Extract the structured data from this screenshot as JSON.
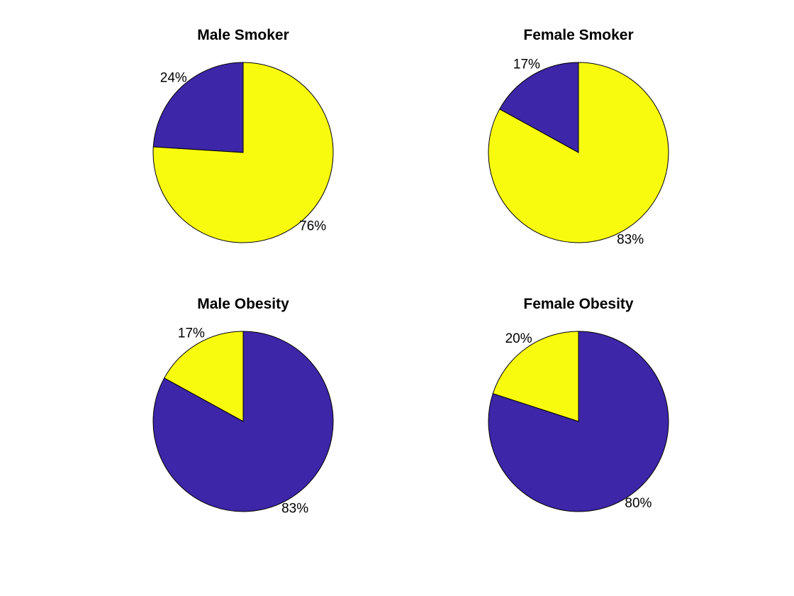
{
  "chart_data": [
    {
      "type": "pie",
      "title": "Male Smoker",
      "slices": [
        {
          "value": 24,
          "label": "24%",
          "color": "#3d26a8"
        },
        {
          "value": 76,
          "label": "76%",
          "color": "#f9fb0e"
        }
      ]
    },
    {
      "type": "pie",
      "title": "Female Smoker",
      "slices": [
        {
          "value": 17,
          "label": "17%",
          "color": "#3d26a8"
        },
        {
          "value": 83,
          "label": "83%",
          "color": "#f9fb0e"
        }
      ]
    },
    {
      "type": "pie",
      "title": "Male Obesity",
      "slices": [
        {
          "value": 17,
          "label": "17%",
          "color": "#f9fb0e"
        },
        {
          "value": 83,
          "label": "83%",
          "color": "#3d26a8"
        }
      ]
    },
    {
      "type": "pie",
      "title": "Female Obesity",
      "slices": [
        {
          "value": 20,
          "label": "20%",
          "color": "#f9fb0e"
        },
        {
          "value": 80,
          "label": "80%",
          "color": "#3d26a8"
        }
      ]
    }
  ]
}
